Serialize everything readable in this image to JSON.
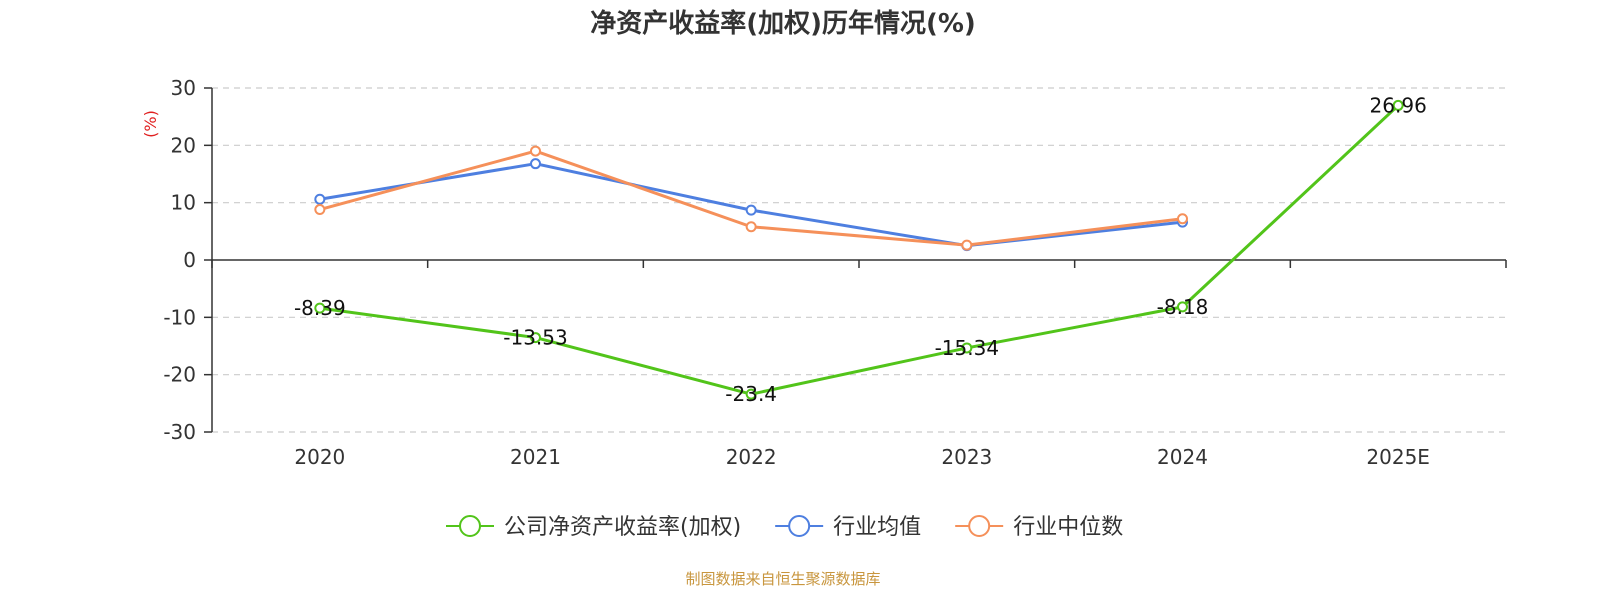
{
  "chart_data": {
    "type": "line",
    "title": "净资产收益率(加权)历年情况(%)",
    "ylabel": "(%)",
    "xlabel": "",
    "categories": [
      "2020",
      "2021",
      "2022",
      "2023",
      "2024",
      "2025E"
    ],
    "ylim": [
      -30,
      30
    ],
    "yticks": [
      30,
      20,
      10,
      0,
      -10,
      -20,
      -30
    ],
    "grid": true,
    "legend_position": "bottom",
    "series": [
      {
        "name": "公司净资产收益率(加权)",
        "color": "#52c41a",
        "values": [
          -8.39,
          -13.53,
          -23.4,
          -15.34,
          -8.18,
          26.96
        ],
        "labels": [
          "-8.39",
          "-13.53",
          "-23.4",
          "-15.34",
          "-8.18",
          "26.96"
        ]
      },
      {
        "name": "行业均值",
        "color": "#4e7fe0",
        "values": [
          10.6,
          16.8,
          8.7,
          2.5,
          6.6,
          null
        ]
      },
      {
        "name": "行业中位数",
        "color": "#f5905a",
        "values": [
          8.8,
          19.0,
          5.8,
          2.6,
          7.2,
          null
        ]
      }
    ]
  },
  "colors": {
    "axis": "#333333",
    "grid": "#cccccc",
    "unit_label": "#e02020",
    "source_text": "#c8963e"
  },
  "footer": {
    "source": "制图数据来自恒生聚源数据库"
  }
}
